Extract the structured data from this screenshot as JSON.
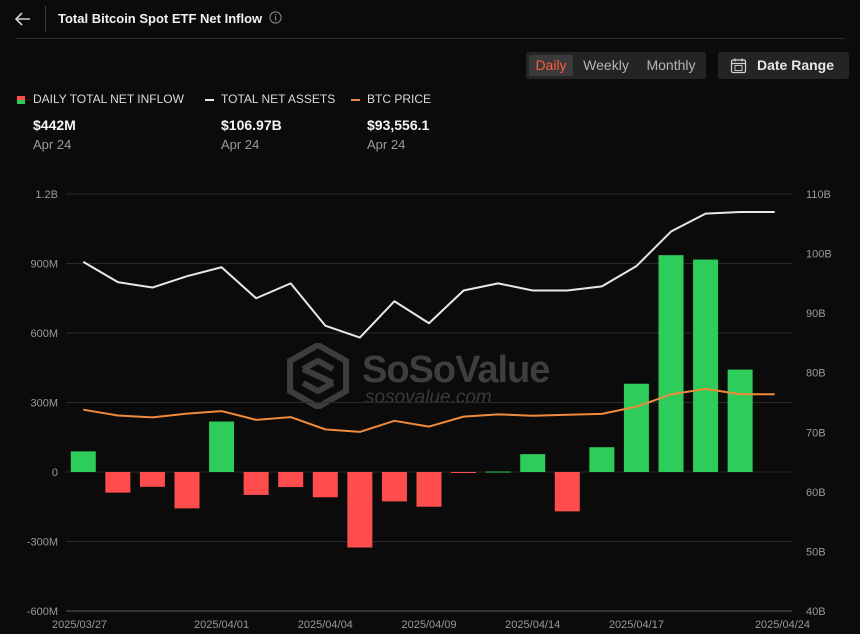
{
  "header": {
    "title": "Total Bitcoin Spot ETF Net Inflow"
  },
  "period_tabs": [
    {
      "label": "Daily",
      "active": true
    },
    {
      "label": "Weekly",
      "active": false
    },
    {
      "label": "Monthly",
      "active": false
    }
  ],
  "date_range_label": "Date Range",
  "legend": [
    {
      "name": "DAILY TOTAL NET INFLOW",
      "value": "$442M",
      "date": "Apr 24",
      "colors": [
        "#ff4d4d",
        "#2ecc5a"
      ]
    },
    {
      "name": "TOTAL NET ASSETS",
      "value": "$106.97B",
      "date": "Apr 24",
      "color": "#e8e8e8"
    },
    {
      "name": "BTC PRICE",
      "value": "$93,556.1",
      "date": "Apr 24",
      "color": "#f08a3c"
    }
  ],
  "watermark": {
    "name": "SoSoValue",
    "url": "sosovalue.com"
  },
  "chart_data": {
    "type": "bar",
    "x": [
      "2025/03/26",
      "2025/03/27",
      "2025/03/28",
      "2025/03/31",
      "2025/04/01",
      "2025/04/02",
      "2025/04/03",
      "2025/04/04",
      "2025/04/07",
      "2025/04/08",
      "2025/04/09",
      "2025/04/10",
      "2025/04/11",
      "2025/04/14",
      "2025/04/15",
      "2025/04/16",
      "2025/04/17",
      "2025/04/21",
      "2025/04/22",
      "2025/04/23",
      "2025/04/24"
    ],
    "xtick_labels": [
      "2025/03/27",
      "2025/04/01",
      "2025/04/04",
      "2025/04/09",
      "2025/04/14",
      "2025/04/17",
      "2025/04/24"
    ],
    "xtick_dates": [
      "2025/03/27",
      "2025/04/01",
      "2025/04/04",
      "2025/04/09",
      "2025/04/14",
      "2025/04/17",
      "2025/04/24"
    ],
    "series": [
      {
        "name": "DAILY TOTAL NET INFLOW",
        "type": "bar",
        "axis": "left",
        "values": [
          89000000,
          -89000000,
          -64000000,
          -157000000,
          218000000,
          -99000000,
          -65000000,
          -109000000,
          -326000000,
          -127000000,
          -150000000,
          -3000000,
          2000000,
          77000000,
          -170000000,
          107000000,
          381000000,
          936000000,
          917000000,
          442000000,
          442000000
        ],
        "positive_color": "#2ecc5a",
        "negative_color": "#ff4d4d"
      },
      {
        "name": "TOTAL NET ASSETS",
        "type": "line",
        "axis": "right",
        "color": "#e8e8e8",
        "values": [
          98.6,
          95.2,
          94.3,
          96.2,
          97.7,
          92.5,
          95.0,
          87.9,
          85.9,
          92.0,
          88.3,
          93.8,
          95.0,
          93.8,
          93.8,
          94.5,
          97.9,
          103.7,
          106.7,
          106.97,
          106.97
        ]
      },
      {
        "name": "BTC PRICE",
        "type": "line",
        "axis": "right2",
        "color": "#f08a3c",
        "values": [
          86900,
          84400,
          83600,
          85200,
          86300,
          82500,
          83700,
          78400,
          77300,
          82100,
          79600,
          83900,
          84900,
          84300,
          84700,
          85100,
          88200,
          93500,
          95900,
          93556.1,
          93556.1
        ]
      }
    ],
    "yticks_left": [
      {
        "label": "-600M",
        "value": -600000000
      },
      {
        "label": "-300M",
        "value": -300000000
      },
      {
        "label": "0",
        "value": 0
      },
      {
        "label": "300M",
        "value": 300000000
      },
      {
        "label": "600M",
        "value": 600000000
      },
      {
        "label": "900M",
        "value": 900000000
      },
      {
        "label": "1.2B",
        "value": 1200000000
      }
    ],
    "yticks_right": [
      {
        "label": "40B",
        "value": 40
      },
      {
        "label": "50B",
        "value": 50
      },
      {
        "label": "60B",
        "value": 60
      },
      {
        "label": "70B",
        "value": 70
      },
      {
        "label": "80B",
        "value": 80
      },
      {
        "label": "90B",
        "value": 90
      },
      {
        "label": "100B",
        "value": 100
      },
      {
        "label": "110B",
        "value": 110
      }
    ],
    "ylim_left": [
      -600000000,
      1200000000
    ],
    "ylim_right": [
      40,
      110
    ],
    "ylim_price": [
      0,
      180000
    ],
    "grid": true
  }
}
